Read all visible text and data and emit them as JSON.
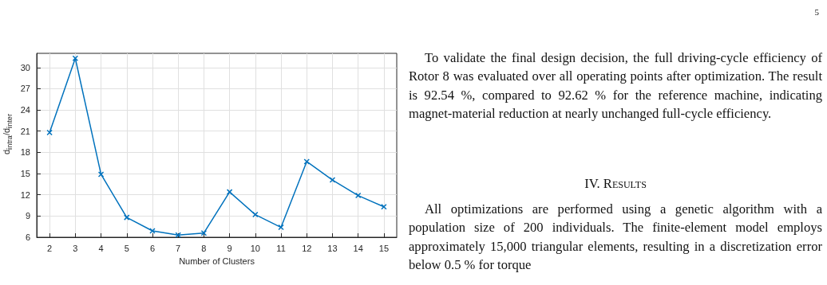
{
  "chart_data": {
    "type": "line",
    "xlabel": "Number of Clusters",
    "ylabel": "d$_{intra}$/d$_{inter}$",
    "x": [
      2,
      3,
      4,
      5,
      6,
      7,
      8,
      9,
      10,
      11,
      12,
      13,
      14,
      15
    ],
    "series": [
      {
        "color": "#0072bd",
        "values": [
          20.8,
          31.3,
          14.9,
          8.8,
          6.9,
          6.3,
          6.6,
          12.4,
          9.2,
          7.4,
          16.7,
          14.1,
          11.9,
          10.3
        ]
      }
    ],
    "xlim": [
      1.5,
      15.5
    ],
    "xticks": [
      2,
      3,
      4,
      5,
      6,
      7,
      8,
      9,
      10,
      11,
      12,
      13,
      14,
      15
    ],
    "ylim": [
      6,
      32
    ],
    "yticks": [
      6,
      9,
      12,
      15,
      18,
      21,
      24,
      27,
      30
    ],
    "grid": true,
    "marker": "cross",
    "line_style": "solid",
    "annotations": [
      "5",
      "To validate the final design decision, the full driving-cycle efficiency of Rotor 8 was evaluated over all operating points after optimization. The result is 92.54 %, compared to 92.62 % for the reference machine, indicating magnet-material reduction at nearly unchanged full-cycle efficiency.",
      "IV. Results",
      "All optimizations are performed using a genetic algorithm with a population size of 200 individuals. The finite-element model employs approximately 15,000 triangular elements, resulting in a discretization error below 0.5 % for torque"
    ]
  }
}
